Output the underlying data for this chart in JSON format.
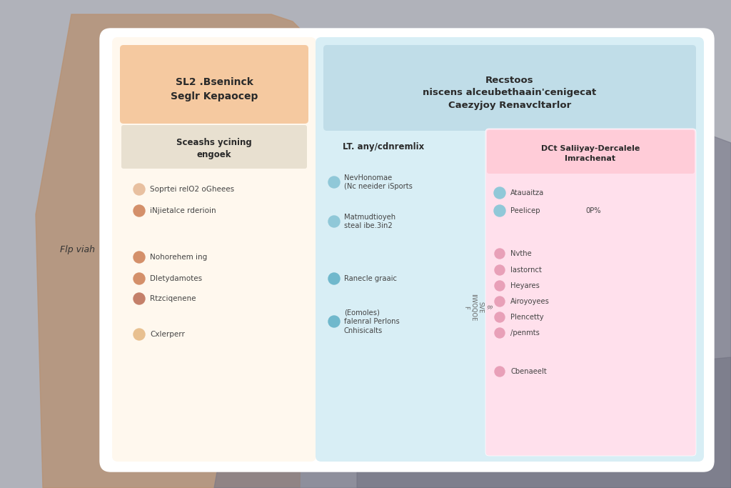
{
  "left_header": "SL2 .Bseninck\nSeglr Kepaocep",
  "left_subheader": "Sceashs ycining\nengoek",
  "left_bg": "#FFF8EE",
  "left_header_bg": "#F5C9A0",
  "left_items_top": [
    {
      "bullet": "#E8C0A0",
      "text": "Soprtei relO2 oGheees"
    },
    {
      "bullet": "#D4906A",
      "text": "iNjietalce rderioin"
    }
  ],
  "left_items_bottom": [
    {
      "bullet": "#D4906A",
      "text": "Nohorehem ing"
    },
    {
      "bullet": "#D4906A",
      "text": "Dletydamotes"
    },
    {
      "bullet": "#C4806A",
      "text": "Rtzciqenene"
    },
    {
      "bullet": "#E8C090",
      "text": "Cxlerperr"
    }
  ],
  "right_header": "Recstoos\nniscens alceubethaain'cenigecat\nCaezyjoy Renavcltarlor",
  "right_bg": "#D8EEF5",
  "right_header_bg": "#C0DDE8",
  "mid_col_header": "LT. any/cdnremlix",
  "mid_items": [
    {
      "bullet": "#90C8D8",
      "text": "NevHonomae\n(Nc neeider iSports"
    },
    {
      "bullet": "#90C8D8",
      "text": "Matmudtioyeh\nsteal ibe.3in2"
    },
    {
      "bullet": "#70B8CC",
      "text": "Ranecle graaic"
    },
    {
      "bullet": "#70B8CC",
      "text": "(Eomoles)\nfalenral Perlons\nCnhisicalts"
    }
  ],
  "right_col_header": "DCt Saliiyay-Dercalele\nImrachenat",
  "right_col_bg": "#FFE0EC",
  "right_col_header_bg": "#FFCCD8",
  "right_items_top": [
    {
      "bullet": "#90C8D8",
      "text": "Atauaitza",
      "extra": ""
    },
    {
      "bullet": "#90C8D8",
      "text": "Peelicep",
      "extra": "0P%"
    }
  ],
  "right_items_bottom": [
    {
      "bullet": "#E8A0B8",
      "text": "Nvthe"
    },
    {
      "bullet": "#E8A0B8",
      "text": "lastornct"
    },
    {
      "bullet": "#E8A0B8",
      "text": "Heyares"
    },
    {
      "bullet": "#E8A0B8",
      "text": "Airoyoyees"
    },
    {
      "bullet": "#E8A0B8",
      "text": "Plencetty"
    },
    {
      "bullet": "#E8A0B8",
      "text": "/penmts"
    },
    {
      "bullet": "#E8A0B8",
      "text": "Cbenaeelt"
    }
  ],
  "side_label": "Flp viah",
  "mid_vertical_label": "8:\nSVE\nIIWOQOE\nF",
  "background_color": "#B0B2BA",
  "left_shadow_color": "#C8A888",
  "right_shadow_color": "#8A8A98"
}
